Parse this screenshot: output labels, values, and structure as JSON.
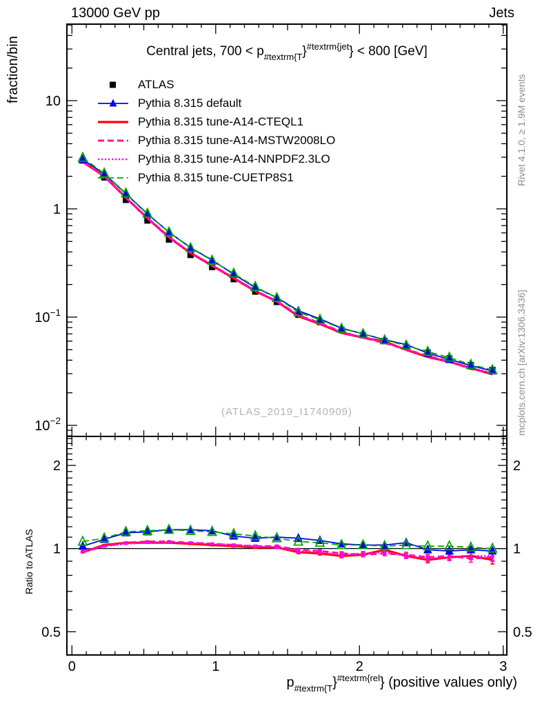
{
  "header": {
    "left": "13000 GeV pp",
    "right": "Jets"
  },
  "side_notes": {
    "rivet": "Rivet 4.1.0, ≥ 1.9M events",
    "mcplots": "mcplots.cern.ch [arXiv:1306.3436]"
  },
  "watermark": "(ATLAS_2019_I1740909)",
  "chart_data": {
    "type": "line",
    "title_parts": {
      "pre": "Central jets, 700 < p",
      "sub": "#textrm{T",
      "brace": "}",
      "sup": "#textrm{jet",
      "post": "} < 800 [GeV]"
    },
    "xlabel_parts": {
      "pre": "p",
      "sub": "#textrm{T",
      "brace": "}",
      "sup": "#textrm{rel",
      "post": "} (positive values only)"
    },
    "ylabel_main": "fraction/bin",
    "ylabel_ratio": "Ratio to ATLAS",
    "legend_position": "top-left",
    "grid": false,
    "x_axis": {
      "min": -0.035,
      "max": 3.025,
      "major_ticks": [
        0,
        1,
        2,
        3
      ],
      "tick_labels": [
        "0",
        "1",
        "2",
        "3"
      ],
      "minor_step": 0.1
    },
    "y_axis_main": {
      "scale": "log",
      "min": 0.0079,
      "max": 50.9,
      "majors": [
        10,
        1,
        0.1,
        0.01
      ],
      "tick_labels": [
        "10",
        "1",
        "10^{-1}",
        "10^{-2}"
      ]
    },
    "y_axis_ratio": {
      "scale": "log",
      "min": 0.412,
      "max": 2.546,
      "majors": [
        2,
        1,
        0.5
      ],
      "tick_labels": [
        "2",
        "1",
        "0.5"
      ]
    },
    "x": [
      0.075,
      0.225,
      0.375,
      0.525,
      0.675,
      0.825,
      0.975,
      1.125,
      1.275,
      1.425,
      1.575,
      1.725,
      1.875,
      2.025,
      2.175,
      2.325,
      2.475,
      2.625,
      2.775,
      2.925
    ],
    "ratio_err": [
      0.004,
      0.004,
      0.005,
      0.005,
      0.006,
      0.006,
      0.007,
      0.008,
      0.009,
      0.01,
      0.012,
      0.013,
      0.015,
      0.017,
      0.019,
      0.021,
      0.024,
      0.027,
      0.03,
      0.034
    ],
    "series": [
      {
        "id": "atlas",
        "name": "ATLAS",
        "color": "#000000",
        "style": "points",
        "marker": "square-filled",
        "legend_marker": "square",
        "values": [
          2.8,
          1.95,
          1.21,
          0.78,
          0.52,
          0.375,
          0.29,
          0.224,
          0.172,
          0.138,
          0.105,
          0.09,
          0.076,
          0.068,
          0.06,
          0.053,
          0.047,
          0.0415,
          0.036,
          0.0325
        ]
      },
      {
        "id": "pythia-default",
        "name": "Pythia 8.315 default",
        "color": "#0000ee",
        "style": "solid",
        "lw": 1.8,
        "marker": "triangle-filled",
        "legend_marker": "triangle",
        "ratio": [
          1.02,
          1.08,
          1.14,
          1.15,
          1.17,
          1.17,
          1.16,
          1.11,
          1.09,
          1.1,
          1.09,
          1.07,
          1.04,
          1.03,
          1.03,
          1.05,
          0.99,
          0.98,
          0.99,
          0.98
        ]
      },
      {
        "id": "cteql1",
        "name": "Pythia 8.315 tune-A14-CTEQL1",
        "color": "#ff0000",
        "style": "solid",
        "lw": 3.2,
        "marker": null,
        "legend_marker": null,
        "err_bars": true,
        "ratio": [
          0.97,
          1.03,
          1.05,
          1.05,
          1.05,
          1.04,
          1.03,
          1.02,
          1.01,
          1.01,
          0.97,
          0.96,
          0.94,
          0.95,
          0.99,
          0.94,
          0.91,
          0.93,
          0.94,
          0.91
        ]
      },
      {
        "id": "mstw2008lo",
        "name": "Pythia 8.315 tune-A14-MSTW2008LO",
        "color": "#ff1493",
        "style": "dashed",
        "lw": 3.0,
        "marker": "square-small",
        "legend_marker": null,
        "err_bars": true,
        "ratio": [
          0.97,
          1.02,
          1.05,
          1.06,
          1.06,
          1.05,
          1.04,
          1.03,
          1.02,
          1.02,
          0.99,
          0.98,
          0.96,
          0.95,
          0.96,
          0.95,
          0.93,
          0.94,
          0.92,
          0.93
        ]
      },
      {
        "id": "nnpdf23lo",
        "name": "Pythia 8.315 tune-A14-NNPDF2.3LO",
        "color": "#ff00ff",
        "style": "dotted",
        "lw": 2.6,
        "marker": null,
        "legend_marker": null,
        "err_bars": true,
        "ratio": [
          0.98,
          1.02,
          1.04,
          1.05,
          1.05,
          1.05,
          1.04,
          1.03,
          1.02,
          1.01,
          0.98,
          0.97,
          0.95,
          0.96,
          0.97,
          0.94,
          0.92,
          0.93,
          0.94,
          0.94
        ]
      },
      {
        "id": "cuetp8s1",
        "name": "Pythia 8.315 tune-CUETP8S1",
        "color": "#00aa00",
        "style": "dashed",
        "lw": 1.8,
        "marker": "triangle-open",
        "legend_marker": null,
        "ratio": [
          1.06,
          1.09,
          1.15,
          1.16,
          1.17,
          1.16,
          1.15,
          1.13,
          1.11,
          1.09,
          1.06,
          1.05,
          1.03,
          1.03,
          1.02,
          1.03,
          1.02,
          1.02,
          1.01,
          1.0
        ]
      }
    ]
  }
}
